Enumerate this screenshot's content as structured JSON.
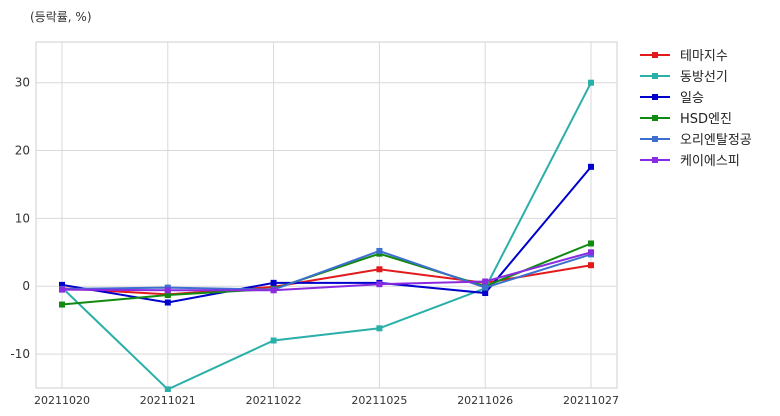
{
  "chart_data": {
    "type": "line",
    "unit_note": "(등락률, %)",
    "categories": [
      "20211020",
      "20211021",
      "20211022",
      "20211025",
      "20211026",
      "20211027"
    ],
    "ylim": [
      -15,
      36
    ],
    "yticks": [
      -10,
      0,
      10,
      20,
      30
    ],
    "grid": true,
    "legend_position": "right-top",
    "series": [
      {
        "name": "테마지수",
        "color": "#e31a1c",
        "values": [
          -0.3,
          -1.2,
          -0.1,
          2.5,
          0.5,
          3.1
        ]
      },
      {
        "name": "동방선기",
        "color": "#2ab0a8",
        "values": [
          -0.2,
          -15.2,
          -8.0,
          -6.2,
          -0.3,
          30.0
        ]
      },
      {
        "name": "일승",
        "color": "#0000cc",
        "values": [
          0.2,
          -2.4,
          0.5,
          0.5,
          -1.0,
          17.6
        ]
      },
      {
        "name": "HSD엔진",
        "color": "#108a10",
        "values": [
          -2.7,
          -1.3,
          -0.4,
          4.8,
          0.0,
          6.3
        ]
      },
      {
        "name": "오리엔탈정공",
        "color": "#3d6fd0",
        "values": [
          -0.4,
          -0.2,
          -0.5,
          5.2,
          -0.2,
          4.7
        ]
      },
      {
        "name": "케이에스피",
        "color": "#8a2be2",
        "values": [
          -0.5,
          -0.6,
          -0.6,
          0.3,
          0.7,
          5.0
        ]
      }
    ]
  }
}
